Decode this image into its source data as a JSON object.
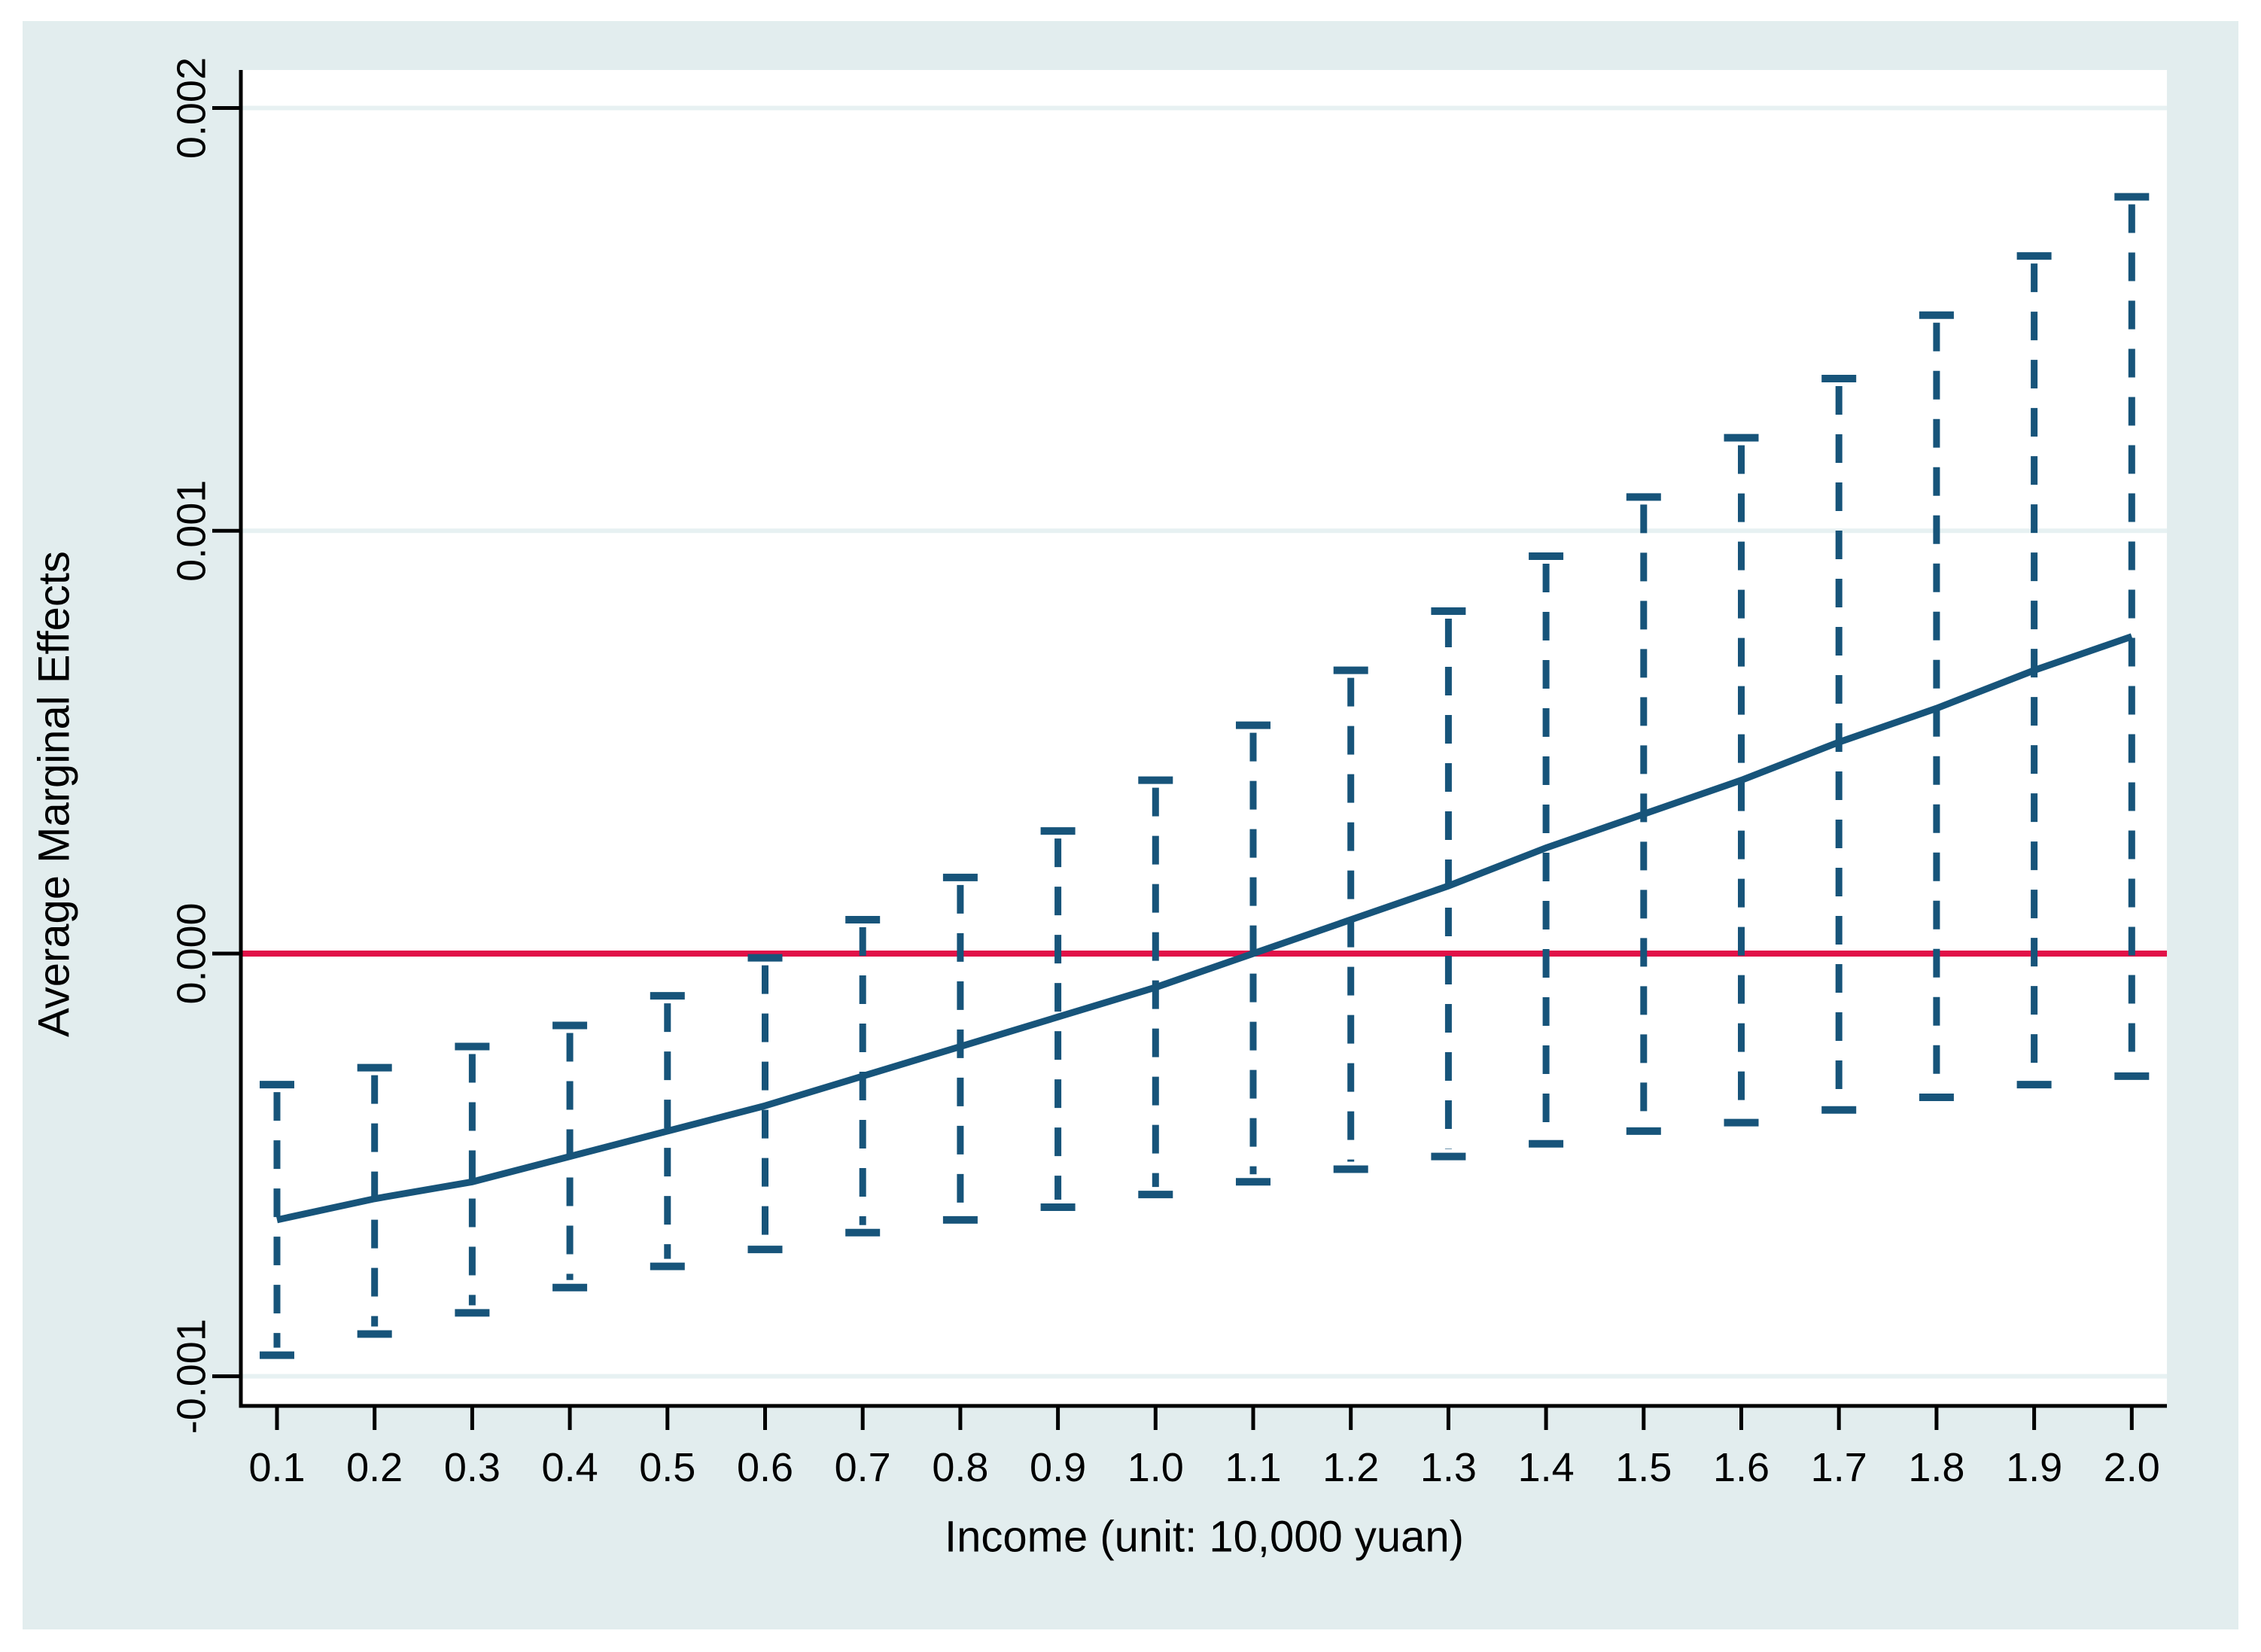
{
  "chart_data": {
    "type": "line",
    "title": "",
    "xlabel": "Income (unit: 10,000 yuan)",
    "ylabel": "Average Marginal Effects",
    "x": [
      0.1,
      0.2,
      0.3,
      0.4,
      0.5,
      0.6,
      0.7,
      0.8,
      0.9,
      1.0,
      1.1,
      1.2,
      1.3,
      1.4,
      1.5,
      1.6,
      1.7,
      1.8,
      1.9,
      2.0
    ],
    "x_tick_labels": [
      "0.1",
      "0.2",
      "0.3",
      "0.4",
      "0.5",
      "0.6",
      "0.7",
      "0.8",
      "0.9",
      "1.0",
      "1.1",
      "1.2",
      "1.3",
      "1.4",
      "1.5",
      "1.6",
      "1.7",
      "1.8",
      "1.9",
      "2.0"
    ],
    "y_ticks": [
      0.002,
      0.001,
      0.0,
      -0.001
    ],
    "y_tick_labels": [
      "0.002",
      "0.001",
      "0.000",
      "-0.001"
    ],
    "xlim": [
      0.063,
      2.036
    ],
    "ylim": [
      -0.00107,
      0.00209
    ],
    "grid": true,
    "legend_position": "none",
    "reference_line_y": 0.0,
    "series": [
      {
        "name": "average_marginal_effect",
        "style": "solid",
        "values": [
          -0.00063,
          -0.00058,
          -0.00054,
          -0.00048,
          -0.00042,
          -0.00036,
          -0.00029,
          -0.00022,
          -0.00015,
          -8e-05,
          0.0,
          8e-05,
          0.00016,
          0.00025,
          0.00033,
          0.00041,
          0.0005,
          0.00058,
          0.00067,
          0.00075
        ]
      },
      {
        "name": "ci_upper",
        "style": "dashed_whisker",
        "values": [
          -0.00031,
          -0.00027,
          -0.00022,
          -0.00017,
          -0.0001,
          -1e-05,
          8e-05,
          0.00018,
          0.00029,
          0.00041,
          0.00054,
          0.00067,
          0.00081,
          0.00094,
          0.00108,
          0.00122,
          0.00136,
          0.00151,
          0.00165,
          0.00179
        ]
      },
      {
        "name": "ci_lower",
        "style": "dashed_whisker",
        "values": [
          -0.00095,
          -0.0009,
          -0.00085,
          -0.00079,
          -0.00074,
          -0.0007,
          -0.00066,
          -0.00063,
          -0.0006,
          -0.00057,
          -0.00054,
          -0.00051,
          -0.00048,
          -0.00045,
          -0.00042,
          -0.0004,
          -0.00037,
          -0.00034,
          -0.00031,
          -0.00029
        ]
      }
    ],
    "colors": {
      "line": "#17547a",
      "ci": "#17547a",
      "zero_line": "#e11048",
      "background": "#e2edee",
      "plot_background": "#ffffff",
      "grid": "#e7f1f2",
      "axis": "#000000"
    }
  }
}
